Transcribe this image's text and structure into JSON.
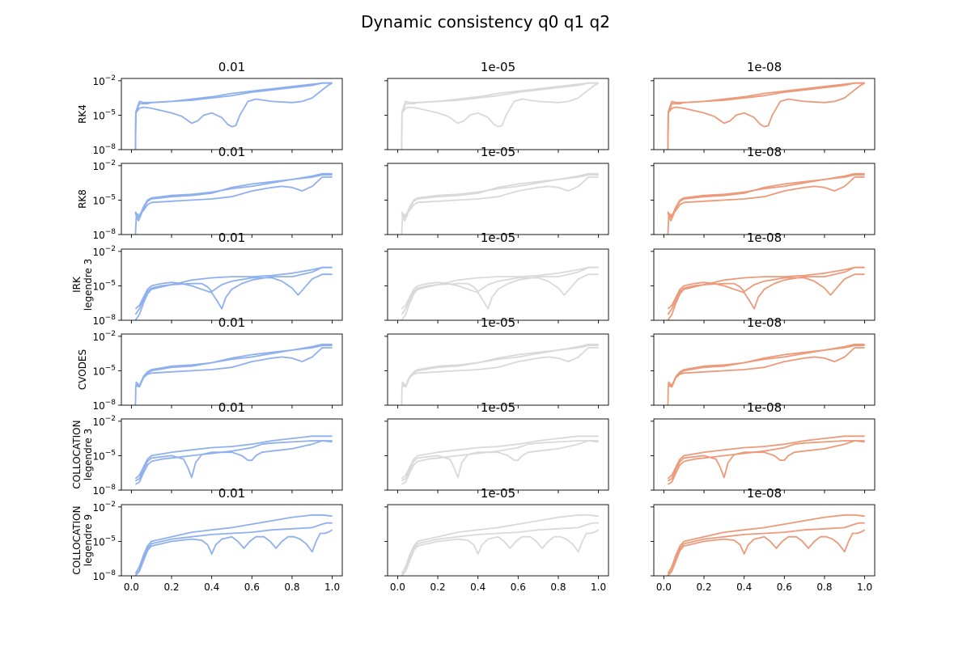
{
  "figure": {
    "title": "Dynamic consistency q0 q1 q2",
    "columns": [
      "0.01",
      "1e-05",
      "1e-08"
    ],
    "rows": [
      [
        "RK4"
      ],
      [
        "RK8"
      ],
      [
        "IRK",
        "legendre 3"
      ],
      [
        "CVODES"
      ],
      [
        "COLLOCATION",
        "legendre 3"
      ],
      [
        "COLLOCATION",
        "legendre 9"
      ]
    ],
    "column_colors": [
      "#8fb0ee",
      "#d9d9d9",
      "#ec9a7a"
    ],
    "x_ticks": [
      "0.0",
      "0.2",
      "0.4",
      "0.6",
      "0.8",
      "1.0"
    ],
    "x_tick_values": [
      0.0,
      0.2,
      0.4,
      0.6,
      0.8,
      1.0
    ],
    "y_ticks": [
      "10^-8",
      "10^-5",
      "10^-2"
    ],
    "y_tick_exponents": [
      -8,
      -5,
      -2
    ]
  },
  "chart_data": {
    "type": "line",
    "scale_y": "log",
    "xlim": [
      -0.05,
      1.05
    ],
    "ylim_log10": [
      -8,
      -1.8
    ],
    "grid": false,
    "note_values": "series values are log10 of the plotted quantity",
    "rows": [
      {
        "name": "RK4",
        "curves": [
          {
            "x": [
              0.02,
              0.022,
              0.04,
              0.06,
              0.08,
              0.1,
              0.2,
              0.3,
              0.4,
              0.5,
              0.6,
              0.7,
              0.8,
              0.9,
              0.95,
              1.0
            ],
            "y": [
              -8,
              -4.7,
              -3.8,
              -3.9,
              -3.9,
              -3.9,
              -3.8,
              -3.7,
              -3.5,
              -3.3,
              -3.0,
              -2.8,
              -2.6,
              -2.4,
              -2.2,
              -2.2
            ]
          },
          {
            "x": [
              0.02,
              0.022,
              0.04,
              0.06,
              0.08,
              0.1,
              0.2,
              0.3,
              0.4,
              0.5,
              0.6,
              0.7,
              0.8,
              0.9,
              0.95,
              1.0
            ],
            "y": [
              -8,
              -4.8,
              -4.0,
              -4.0,
              -4.0,
              -3.9,
              -3.8,
              -3.6,
              -3.4,
              -3.1,
              -2.9,
              -2.7,
              -2.5,
              -2.3,
              -2.2,
              -2.2
            ]
          },
          {
            "x": [
              0.02,
              0.022,
              0.04,
              0.06,
              0.1,
              0.15,
              0.2,
              0.25,
              0.3,
              0.33,
              0.36,
              0.4,
              0.45,
              0.48,
              0.5,
              0.52,
              0.54,
              0.58,
              0.62,
              0.66,
              0.7,
              0.8,
              0.85,
              0.9,
              0.95,
              0.98,
              1.0
            ],
            "y": [
              -8,
              -4.8,
              -4.4,
              -4.3,
              -4.4,
              -4.6,
              -4.8,
              -5.1,
              -5.7,
              -5.5,
              -5.0,
              -4.8,
              -5.2,
              -5.8,
              -6.0,
              -5.9,
              -5.0,
              -3.8,
              -3.6,
              -3.7,
              -3.8,
              -3.9,
              -3.8,
              -3.5,
              -2.8,
              -2.4,
              -2.2
            ]
          }
        ]
      },
      {
        "name": "RK8",
        "curves": [
          {
            "x": [
              0.02,
              0.025,
              0.035,
              0.045,
              0.06,
              0.08,
              0.1,
              0.2,
              0.3,
              0.4,
              0.5,
              0.6,
              0.7,
              0.8,
              0.9,
              0.95,
              1.0
            ],
            "y": [
              -6.0,
              -6.2,
              -6.5,
              -6.2,
              -5.6,
              -5.0,
              -4.8,
              -4.6,
              -4.5,
              -4.3,
              -4.0,
              -3.8,
              -3.5,
              -3.2,
              -3.0,
              -2.8,
              -2.8
            ]
          },
          {
            "x": [
              0.02,
              0.025,
              0.035,
              0.045,
              0.06,
              0.08,
              0.1,
              0.2,
              0.3,
              0.4,
              0.5,
              0.6,
              0.7,
              0.8,
              0.9,
              0.95,
              1.0
            ],
            "y": [
              -6.1,
              -6.4,
              -6.8,
              -6.4,
              -5.7,
              -5.1,
              -4.9,
              -4.7,
              -4.6,
              -4.4,
              -3.9,
              -3.6,
              -3.4,
              -3.2,
              -2.9,
              -2.7,
              -2.7
            ]
          },
          {
            "x": [
              0.02,
              0.025,
              0.04,
              0.06,
              0.08,
              0.1,
              0.2,
              0.3,
              0.4,
              0.5,
              0.6,
              0.7,
              0.75,
              0.8,
              0.85,
              0.9,
              0.95,
              1.0
            ],
            "y": [
              -8.0,
              -6.2,
              -6.3,
              -5.9,
              -5.4,
              -5.2,
              -5.1,
              -5.0,
              -4.9,
              -4.7,
              -4.2,
              -3.9,
              -3.8,
              -3.9,
              -4.2,
              -3.8,
              -3.0,
              -3.0
            ]
          }
        ]
      },
      {
        "name": "IRK legendre 3",
        "curves": [
          {
            "x": [
              0.02,
              0.04,
              0.06,
              0.08,
              0.1,
              0.15,
              0.2,
              0.25,
              0.3,
              0.35,
              0.4,
              0.43,
              0.45,
              0.47,
              0.5,
              0.55,
              0.6,
              0.7,
              0.8,
              0.9,
              0.95,
              1.0
            ],
            "y": [
              -7.0,
              -6.7,
              -6.0,
              -5.3,
              -5.0,
              -4.8,
              -4.7,
              -4.8,
              -5.0,
              -5.3,
              -5.6,
              -6.4,
              -7.0,
              -6.0,
              -5.3,
              -4.8,
              -4.5,
              -4.2,
              -4.2,
              -3.8,
              -3.4,
              -3.4
            ]
          },
          {
            "x": [
              0.02,
              0.04,
              0.06,
              0.08,
              0.1,
              0.15,
              0.2,
              0.3,
              0.35,
              0.38,
              0.4,
              0.45,
              0.5,
              0.6,
              0.7,
              0.75,
              0.8,
              0.83,
              0.86,
              0.9,
              0.95,
              1.0
            ],
            "y": [
              -7.5,
              -7.0,
              -6.2,
              -5.5,
              -5.2,
              -5.0,
              -4.9,
              -4.8,
              -4.8,
              -5.1,
              -5.5,
              -4.9,
              -4.6,
              -4.3,
              -4.3,
              -4.6,
              -5.2,
              -5.8,
              -5.2,
              -4.4,
              -4.0,
              -4.0
            ]
          },
          {
            "x": [
              0.02,
              0.04,
              0.06,
              0.08,
              0.1,
              0.15,
              0.2,
              0.25,
              0.3,
              0.4,
              0.5,
              0.6,
              0.7,
              0.8,
              0.9,
              0.95,
              1.0
            ],
            "y": [
              -8.0,
              -7.5,
              -6.5,
              -5.7,
              -5.3,
              -5.1,
              -4.9,
              -4.7,
              -4.5,
              -4.3,
              -4.2,
              -4.2,
              -4.1,
              -3.9,
              -3.6,
              -3.4,
              -3.4
            ]
          }
        ]
      },
      {
        "name": "CVODES",
        "curves": [
          {
            "x": [
              0.02,
              0.025,
              0.04,
              0.06,
              0.08,
              0.1,
              0.2,
              0.3,
              0.4,
              0.5,
              0.6,
              0.7,
              0.8,
              0.9,
              0.95,
              1.0
            ],
            "y": [
              -6.0,
              -6.0,
              -6.3,
              -5.5,
              -5.1,
              -4.9,
              -4.6,
              -4.5,
              -4.3,
              -4.0,
              -3.8,
              -3.5,
              -3.2,
              -3.0,
              -2.8,
              -2.8
            ]
          },
          {
            "x": [
              0.02,
              0.025,
              0.04,
              0.06,
              0.08,
              0.1,
              0.2,
              0.3,
              0.4,
              0.5,
              0.6,
              0.7,
              0.8,
              0.9,
              0.95,
              1.0
            ],
            "y": [
              -6.1,
              -6.2,
              -6.4,
              -5.6,
              -5.2,
              -5.0,
              -4.7,
              -4.6,
              -4.3,
              -3.9,
              -3.6,
              -3.4,
              -3.2,
              -2.9,
              -2.7,
              -2.7
            ]
          },
          {
            "x": [
              0.02,
              0.022,
              0.04,
              0.06,
              0.08,
              0.1,
              0.2,
              0.3,
              0.4,
              0.5,
              0.6,
              0.7,
              0.75,
              0.8,
              0.85,
              0.9,
              0.95,
              1.0
            ],
            "y": [
              -8.0,
              -6.3,
              -6.4,
              -5.6,
              -5.3,
              -5.2,
              -5.1,
              -5.0,
              -4.9,
              -4.7,
              -4.2,
              -3.9,
              -3.8,
              -3.9,
              -4.2,
              -3.8,
              -3.0,
              -3.0
            ]
          }
        ]
      },
      {
        "name": "COLLOCATION legendre 3",
        "curves": [
          {
            "x": [
              0.02,
              0.04,
              0.06,
              0.08,
              0.1,
              0.2,
              0.3,
              0.4,
              0.5,
              0.6,
              0.7,
              0.8,
              0.9,
              0.95,
              1.0
            ],
            "y": [
              -7.0,
              -6.7,
              -6.0,
              -5.3,
              -5.0,
              -4.7,
              -4.5,
              -4.3,
              -4.2,
              -4.0,
              -3.7,
              -3.5,
              -3.3,
              -3.3,
              -3.3
            ]
          },
          {
            "x": [
              0.02,
              0.04,
              0.06,
              0.08,
              0.1,
              0.2,
              0.26,
              0.28,
              0.3,
              0.32,
              0.35,
              0.4,
              0.5,
              0.55,
              0.58,
              0.6,
              0.62,
              0.65,
              0.7,
              0.8,
              0.9,
              0.95,
              1.0
            ],
            "y": [
              -7.2,
              -7.0,
              -6.2,
              -5.5,
              -5.2,
              -5.0,
              -5.3,
              -6.0,
              -6.9,
              -5.6,
              -4.9,
              -4.7,
              -4.7,
              -5.0,
              -5.4,
              -5.4,
              -5.0,
              -4.7,
              -4.6,
              -4.4,
              -4.0,
              -3.7,
              -3.7
            ]
          },
          {
            "x": [
              0.02,
              0.04,
              0.06,
              0.08,
              0.1,
              0.15,
              0.2,
              0.3,
              0.4,
              0.5,
              0.6,
              0.65,
              0.7,
              0.8,
              0.9,
              0.95,
              1.0
            ],
            "y": [
              -7.5,
              -7.3,
              -6.5,
              -5.8,
              -5.5,
              -5.3,
              -5.2,
              -5.0,
              -4.8,
              -4.6,
              -4.3,
              -4.0,
              -3.9,
              -3.8,
              -3.7,
              -3.7,
              -3.8
            ]
          }
        ]
      },
      {
        "name": "COLLOCATION legendre 9",
        "curves": [
          {
            "x": [
              0.02,
              0.04,
              0.06,
              0.08,
              0.1,
              0.2,
              0.3,
              0.4,
              0.5,
              0.6,
              0.7,
              0.8,
              0.9,
              0.95,
              1.0
            ],
            "y": [
              -7.8,
              -7.2,
              -6.2,
              -5.4,
              -5.0,
              -4.6,
              -4.2,
              -4.0,
              -3.8,
              -3.5,
              -3.2,
              -2.9,
              -2.7,
              -2.7,
              -2.8
            ]
          },
          {
            "x": [
              0.02,
              0.04,
              0.06,
              0.08,
              0.1,
              0.2,
              0.3,
              0.4,
              0.5,
              0.6,
              0.7,
              0.8,
              0.9,
              0.95,
              0.97,
              1.0
            ],
            "y": [
              -8.0,
              -7.5,
              -6.5,
              -5.6,
              -5.2,
              -4.8,
              -4.6,
              -4.4,
              -4.3,
              -4.2,
              -4.0,
              -3.9,
              -3.8,
              -3.5,
              -3.4,
              -3.4
            ]
          },
          {
            "x": [
              0.02,
              0.04,
              0.06,
              0.08,
              0.1,
              0.2,
              0.3,
              0.35,
              0.38,
              0.4,
              0.42,
              0.45,
              0.5,
              0.53,
              0.56,
              0.59,
              0.62,
              0.66,
              0.69,
              0.72,
              0.75,
              0.78,
              0.81,
              0.84,
              0.87,
              0.9,
              0.92,
              0.94,
              0.96,
              0.98,
              1.0
            ],
            "y": [
              -8.0,
              -7.6,
              -6.7,
              -5.8,
              -5.4,
              -5.0,
              -4.8,
              -4.9,
              -5.3,
              -6.1,
              -5.3,
              -4.8,
              -4.6,
              -5.0,
              -5.6,
              -5.0,
              -4.6,
              -4.6,
              -5.0,
              -5.6,
              -5.0,
              -4.6,
              -4.6,
              -4.8,
              -5.2,
              -5.9,
              -5.0,
              -4.3,
              -4.3,
              -4.2,
              -4.0
            ]
          }
        ]
      }
    ]
  }
}
